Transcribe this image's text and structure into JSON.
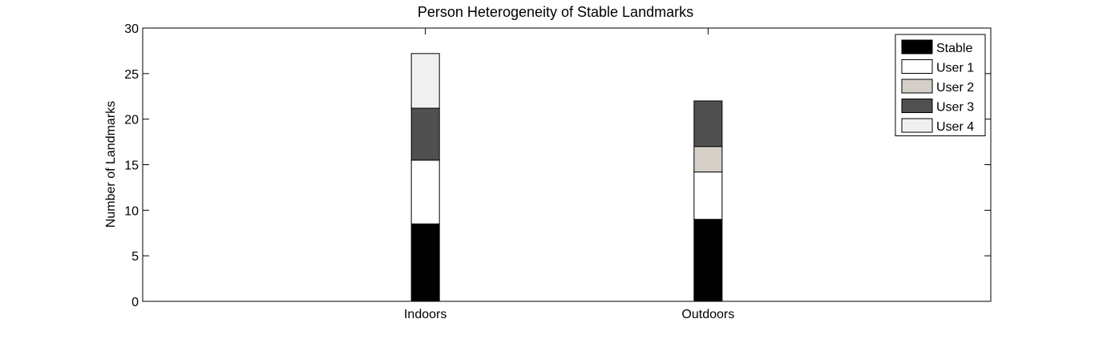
{
  "chart_data": {
    "type": "bar",
    "stacked": true,
    "title": "Person Heterogeneity of Stable Landmarks",
    "xlabel": "",
    "ylabel": "Number of Landmarks",
    "categories": [
      "Indoors",
      "Outdoors"
    ],
    "ylim": [
      0,
      30
    ],
    "yticks": [
      0,
      5,
      10,
      15,
      20,
      25,
      30
    ],
    "grid": false,
    "legend_position": "top-right",
    "series": [
      {
        "name": "Stable",
        "color": "#000000",
        "values": [
          8.5,
          9.0
        ]
      },
      {
        "name": "User 1",
        "color": "#ffffff",
        "values": [
          7.0,
          5.2
        ]
      },
      {
        "name": "User 2",
        "color": "#d4d0c8",
        "values": [
          0,
          2.8
        ]
      },
      {
        "name": "User 3",
        "color": "#505050",
        "values": [
          5.7,
          5.0
        ]
      },
      {
        "name": "User 4",
        "color": "#f0f0f0",
        "values": [
          6.0,
          0
        ]
      }
    ]
  }
}
